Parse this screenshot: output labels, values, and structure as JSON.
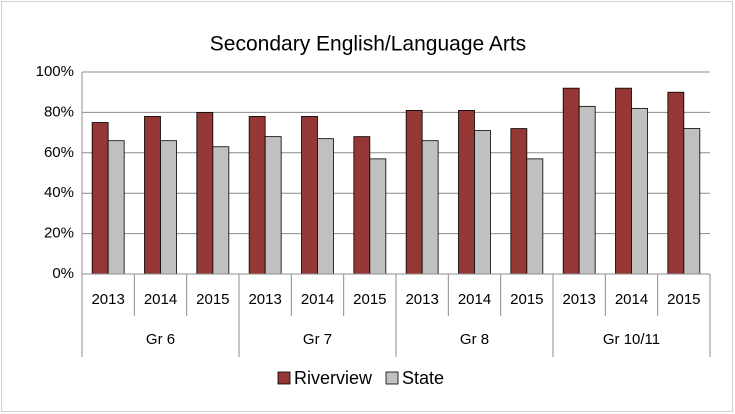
{
  "chart_data": {
    "type": "bar",
    "title": "Secondary English/Language Arts",
    "categories": [
      "2013",
      "2014",
      "2015",
      "2013",
      "2014",
      "2015",
      "2013",
      "2014",
      "2015",
      "2013",
      "2014",
      "2015"
    ],
    "groups": [
      "Gr 6",
      "Gr 7",
      "Gr 8",
      "Gr 10/11"
    ],
    "series": [
      {
        "name": "Riverview",
        "color": "#953735",
        "values": [
          75,
          78,
          80,
          78,
          78,
          68,
          81,
          81,
          72,
          92,
          92,
          90
        ]
      },
      {
        "name": "State",
        "color": "#c0c0c0",
        "values": [
          66,
          66,
          63,
          68,
          67,
          57,
          66,
          71,
          57,
          83,
          82,
          72
        ]
      }
    ],
    "ylim": [
      0,
      100
    ],
    "yticks": [
      {
        "value": 0,
        "label": "0%"
      },
      {
        "value": 20,
        "label": "20%"
      },
      {
        "value": 40,
        "label": "40%"
      },
      {
        "value": 60,
        "label": "60%"
      },
      {
        "value": 80,
        "label": "80%"
      },
      {
        "value": 100,
        "label": "100%"
      }
    ],
    "grid": true,
    "legend": "bottom"
  }
}
